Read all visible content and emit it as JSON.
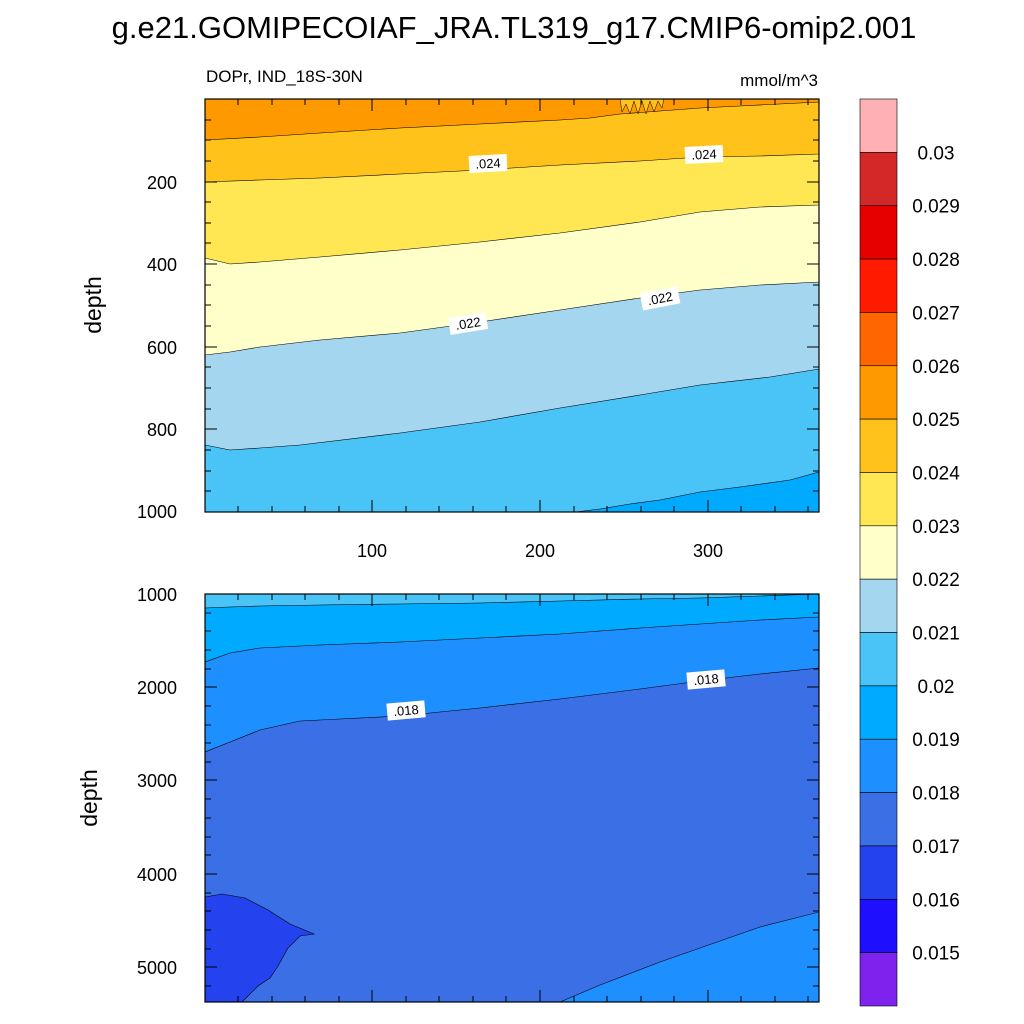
{
  "page_title": "g.e21.GOMIPECOIAF_JRA.TL319_g17.CMIP6-omip2.001",
  "chart_data": {
    "type": "heatmap",
    "variable": "DOPr, IND_18S-30N",
    "units": "mmol/m^3",
    "x_range": [
      1,
      366
    ],
    "top_panel": {
      "ylabel": "depth",
      "y_range": [
        0,
        1000
      ],
      "yticks": [
        "200",
        "400",
        "600",
        "800",
        "1000"
      ],
      "xticks": [
        "100",
        "200",
        "300"
      ],
      "contour_labels": [
        ".024",
        ".024",
        ".022",
        ".022"
      ]
    },
    "bottom_panel": {
      "ylabel": "depth",
      "y_range": [
        1000,
        5400
      ],
      "yticks": [
        "1000",
        "2000",
        "3000",
        "4000",
        "5000"
      ],
      "contour_labels": [
        ".018",
        ".018"
      ]
    },
    "colorbar": {
      "labels": [
        "0.03",
        "0.029",
        "0.028",
        "0.027",
        "0.026",
        "0.025",
        "0.024",
        "0.023",
        "0.022",
        "0.021",
        "0.02",
        "0.019",
        "0.018",
        "0.017",
        "0.016",
        "0.015"
      ],
      "colors": [
        "#ffb0b4",
        "#d42828",
        "#e60000",
        "#ff1a00",
        "#ff6600",
        "#ff9900",
        "#ffc21a",
        "#ffe653",
        "#ffffca",
        "#a4d6ef",
        "#4ac3f6",
        "#00aaff",
        "#1e8fff",
        "#3a6fe6",
        "#2442ee",
        "#1e10ff",
        "#7f22ee"
      ]
    }
  }
}
